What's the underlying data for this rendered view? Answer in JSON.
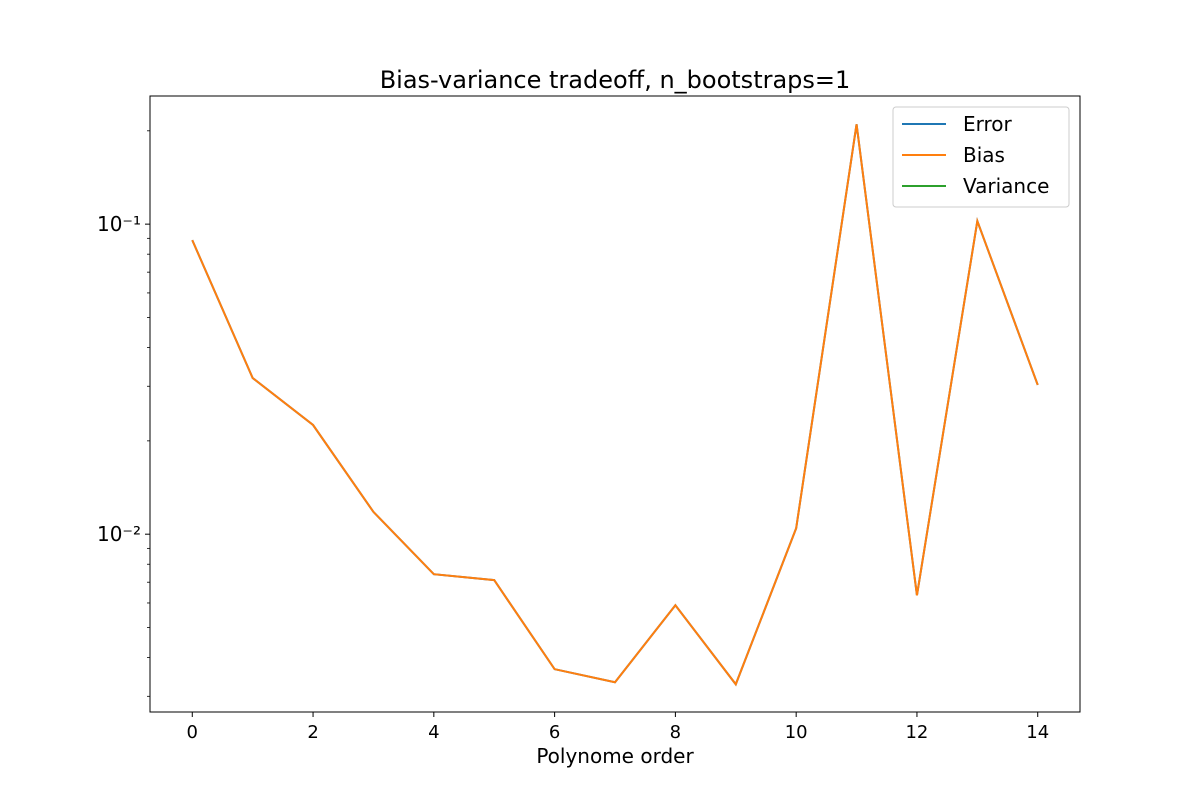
{
  "chart_data": {
    "type": "line",
    "title": "Bias-variance tradeoff, n_bootstraps=1",
    "xlabel": "Polynome order",
    "x": [
      0,
      1,
      2,
      3,
      4,
      5,
      6,
      7,
      8,
      9,
      10,
      11,
      12,
      13,
      14
    ],
    "series": [
      {
        "name": "Error",
        "color": "#1f77b4",
        "values": [
          0.0888,
          0.0319,
          0.0225,
          0.0118,
          0.00743,
          0.00711,
          0.00367,
          0.00333,
          0.0059,
          0.00328,
          0.01045,
          0.21,
          0.00635,
          0.1023,
          0.0303
        ]
      },
      {
        "name": "Bias",
        "color": "#ff7f0e",
        "values": [
          0.0888,
          0.0319,
          0.0225,
          0.0118,
          0.00743,
          0.00711,
          0.00367,
          0.00333,
          0.0059,
          0.00328,
          0.01045,
          0.21,
          0.00635,
          0.1023,
          0.0303
        ]
      },
      {
        "name": "Variance",
        "color": "#2ca02c",
        "values": [
          null,
          null,
          null,
          null,
          null,
          null,
          null,
          null,
          null,
          null,
          null,
          null,
          null,
          null,
          null
        ]
      }
    ],
    "xlim": [
      -0.7,
      14.7
    ],
    "xticks": [
      0,
      2,
      4,
      6,
      8,
      10,
      12,
      14
    ],
    "ylim": [
      0.00267,
      0.259
    ],
    "yscale": "log",
    "yticks": [
      {
        "value": 0.01,
        "label": "10⁻²"
      },
      {
        "value": 0.1,
        "label": "10⁻¹"
      }
    ],
    "yminorticks": [
      0.003,
      0.004,
      0.005,
      0.006,
      0.007,
      0.008,
      0.009,
      0.02,
      0.03,
      0.04,
      0.05,
      0.06,
      0.07,
      0.08,
      0.09,
      0.2
    ],
    "legend": "upper right"
  }
}
